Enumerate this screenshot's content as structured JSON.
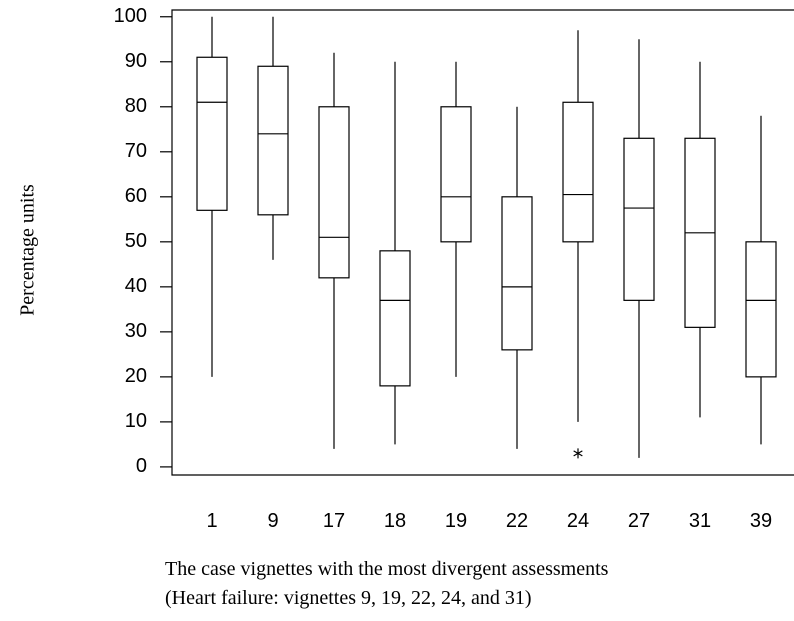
{
  "chart_data": {
    "type": "box",
    "ylabel": "Percentage units",
    "xlabel": [
      "The case vignettes with the most divergent assessments",
      "(Heart failure: vignettes 9, 19, 22, 24, and 31)"
    ],
    "categories": [
      "1",
      "9",
      "17",
      "18",
      "19",
      "22",
      "24",
      "27",
      "31",
      "39"
    ],
    "whisker_low": [
      20,
      46,
      4,
      5,
      20,
      4,
      10,
      2,
      11,
      5
    ],
    "q1": [
      57,
      56,
      42,
      18,
      50,
      26,
      50,
      37,
      31,
      20
    ],
    "median": [
      81,
      74,
      51,
      37,
      60,
      40,
      60.5,
      57.5,
      52,
      37
    ],
    "q3": [
      91,
      89,
      80,
      48,
      80,
      60,
      81,
      73,
      73,
      50
    ],
    "whisker_high": [
      100,
      100,
      92,
      90,
      90,
      80,
      97,
      95,
      90,
      78
    ],
    "outliers": [
      [],
      [],
      [],
      [],
      [],
      [],
      [
        3
      ],
      [],
      [],
      []
    ],
    "color": "#000000",
    "ylim": [
      -1.8,
      101.5
    ],
    "yticks": [
      0,
      10,
      20,
      30,
      40,
      50,
      60,
      70,
      80,
      90,
      100
    ]
  }
}
